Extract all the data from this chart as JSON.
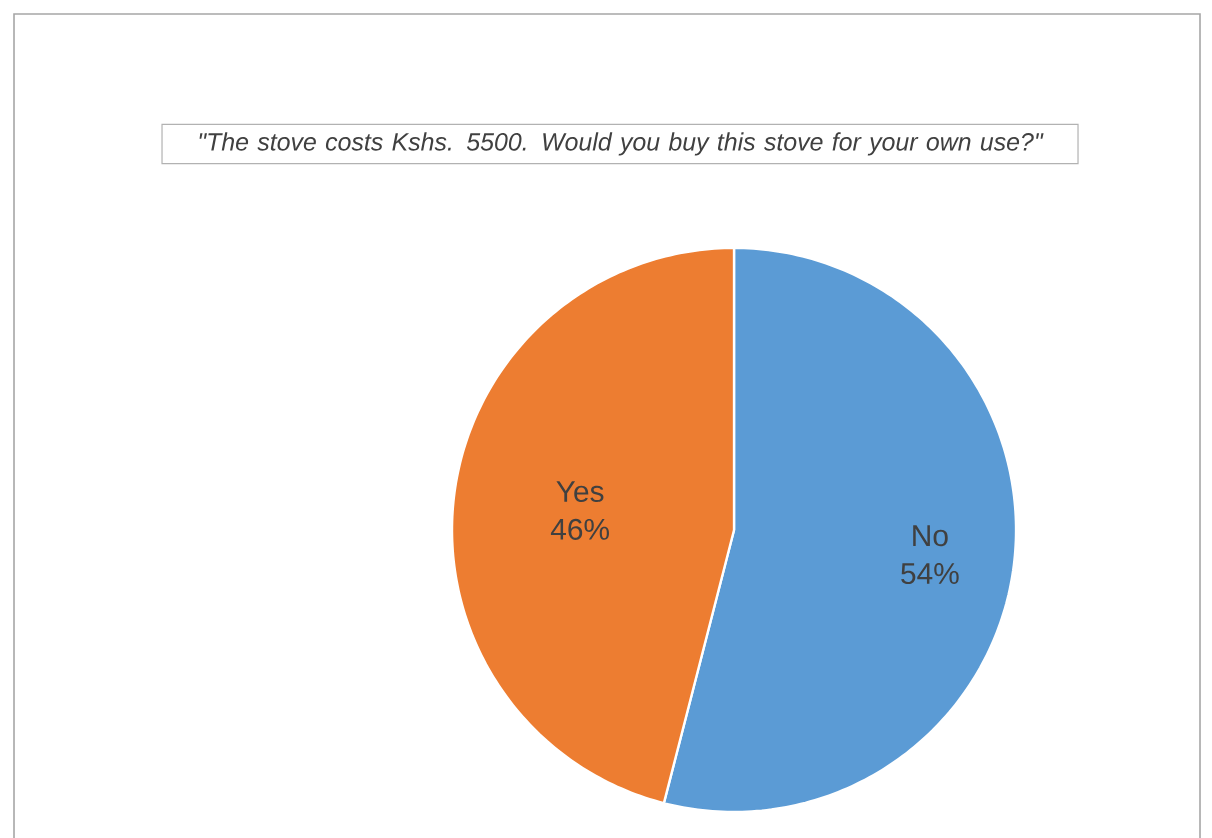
{
  "chart_data": {
    "type": "pie",
    "title": "\"The stove costs Kshs. 5500. Would you buy this stove for your own use?\"",
    "categories": [
      "No",
      "Yes"
    ],
    "values": [
      54,
      46
    ],
    "value_labels": [
      "54%",
      "46%"
    ],
    "colors": [
      "#5b9bd5",
      "#ed7d31"
    ]
  }
}
